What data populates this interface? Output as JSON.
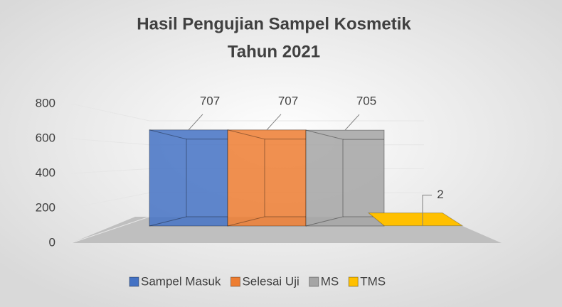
{
  "chart_data": {
    "type": "bar3d",
    "title": [
      "Hasil Pengujian Sampel Kosmetik",
      "Tahun 2021"
    ],
    "series": [
      {
        "name": "Sampel Masuk",
        "color": "#4472c4",
        "values": [
          707
        ]
      },
      {
        "name": "Selesai Uji",
        "color": "#ed7d31",
        "values": [
          707
        ]
      },
      {
        "name": "MS",
        "color": "#a5a5a5",
        "values": [
          705
        ]
      },
      {
        "name": "TMS",
        "color": "#ffc000",
        "values": [
          2
        ]
      }
    ],
    "ylim": [
      0,
      800
    ],
    "yticks": [
      0,
      200,
      400,
      600,
      800
    ],
    "grid": true,
    "legend": "bottom"
  }
}
